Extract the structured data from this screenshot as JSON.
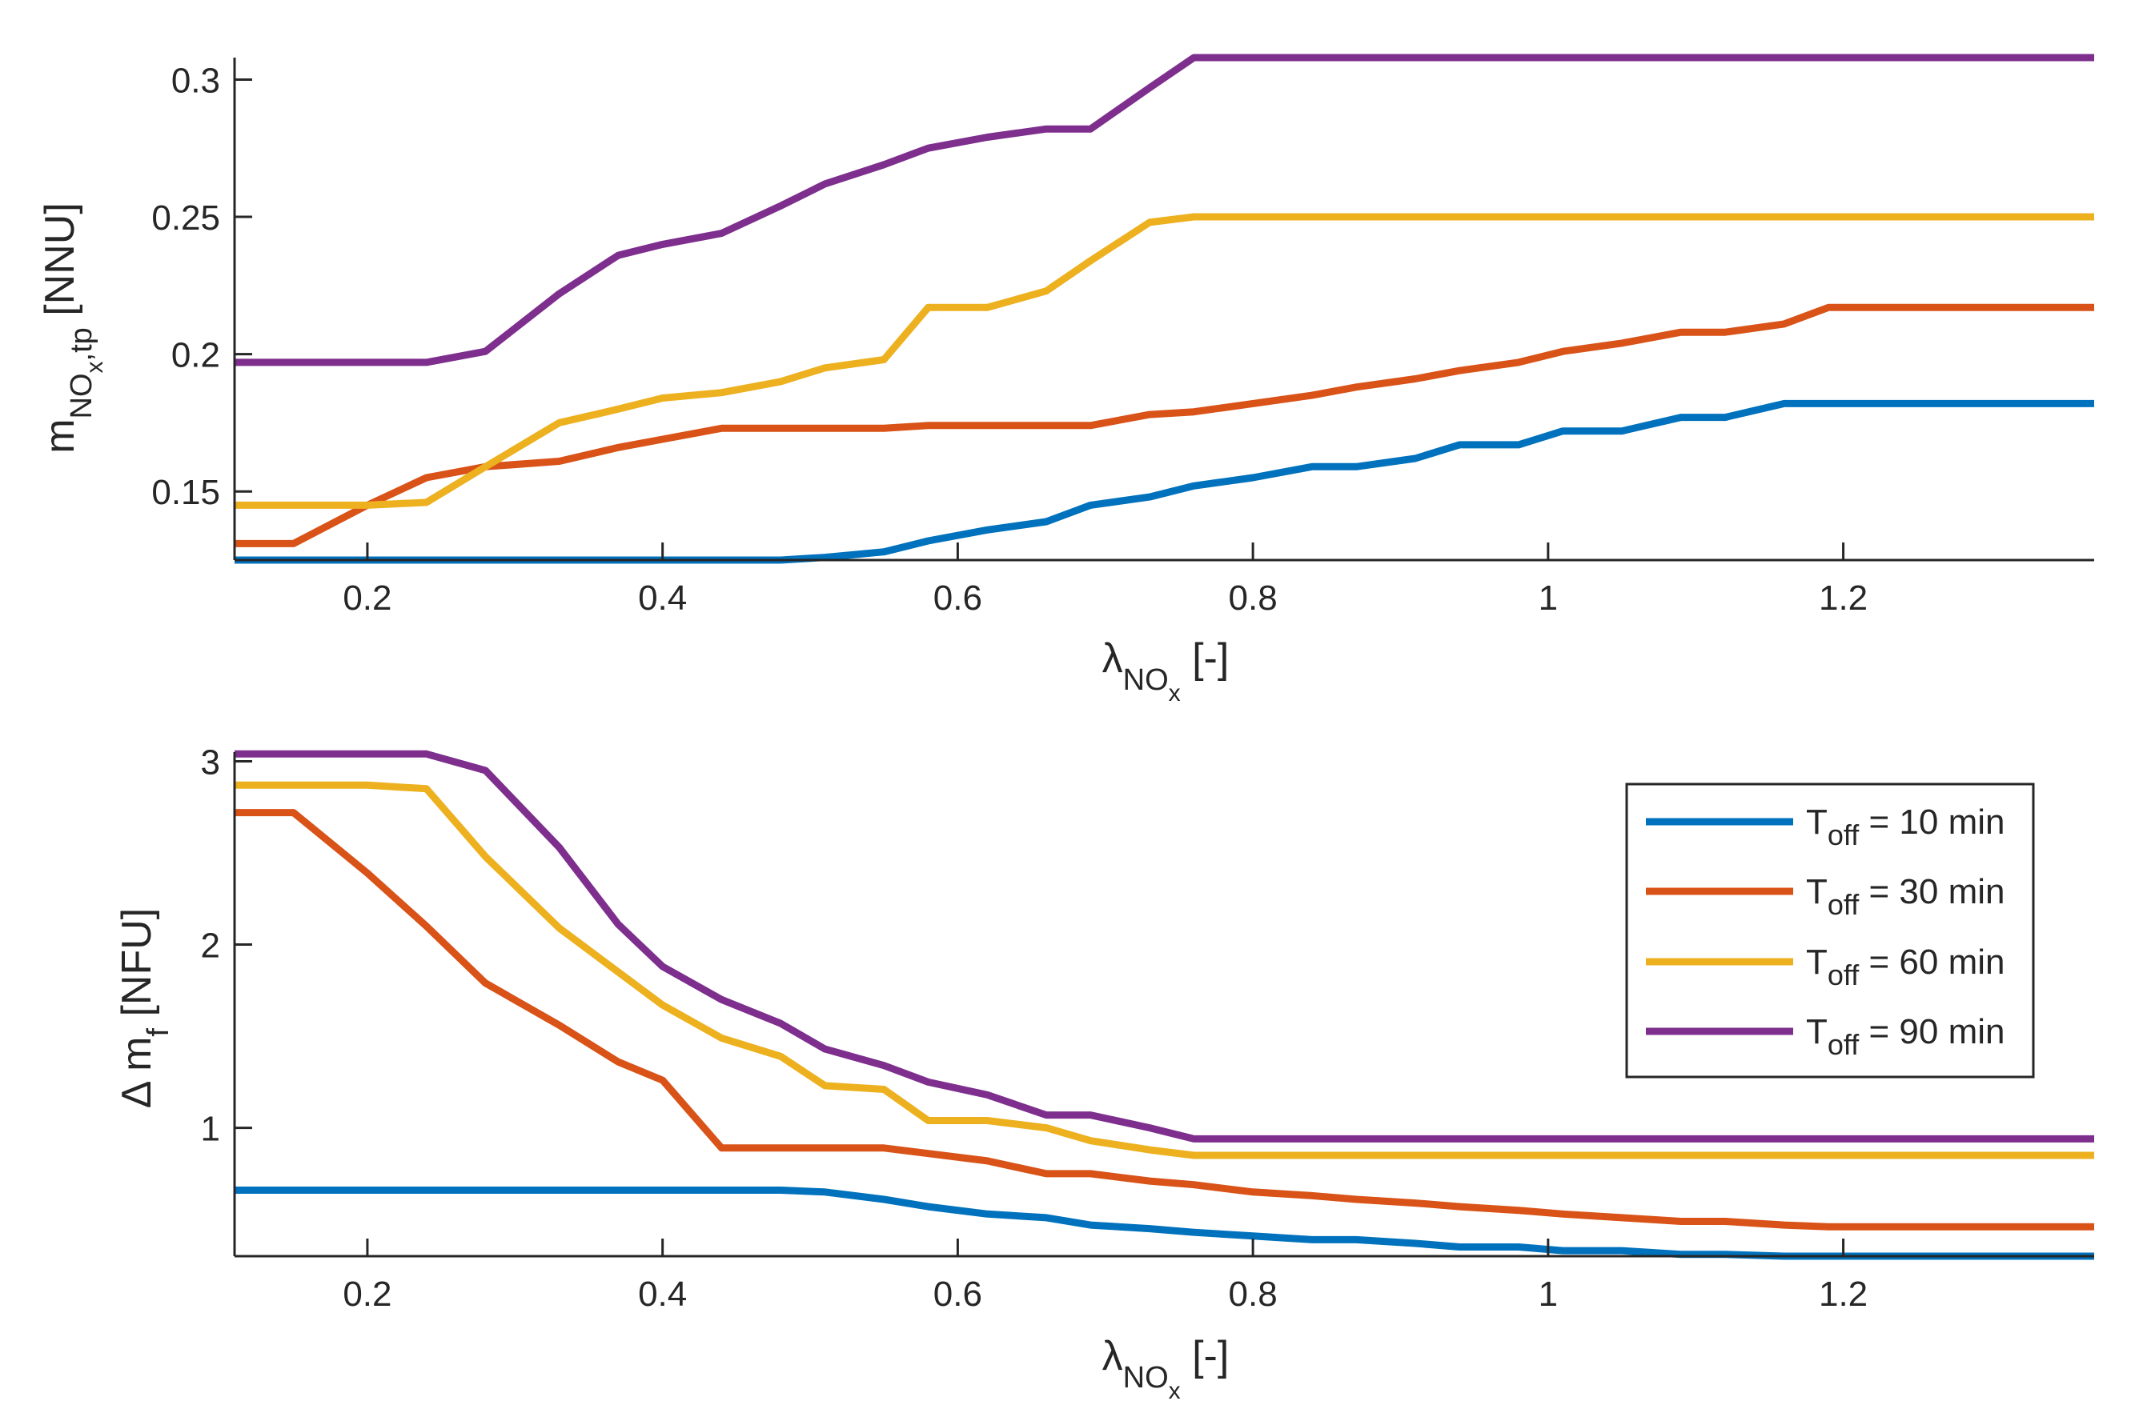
{
  "colors": {
    "series": [
      "#0072BD",
      "#D95319",
      "#EDB120",
      "#7E2F8E"
    ],
    "axis": "#262626",
    "background": "#ffffff"
  },
  "chart_data": [
    {
      "type": "line",
      "panel": "top",
      "ylabel": {
        "main": "m",
        "sub": "NO",
        "subsub": "x",
        "tail": ",tp",
        "unit": " [NNU]"
      },
      "xlabel": {
        "main": "λ",
        "sub": "NO",
        "subsub": "x",
        "unit": " [-]"
      },
      "xlim": [
        0.11,
        1.37
      ],
      "ylim": [
        0.125,
        0.308
      ],
      "xticks": [
        0.2,
        0.4,
        0.6,
        0.8,
        1,
        1.2
      ],
      "xtick_labels": [
        "0.2",
        "0.4",
        "0.6",
        "0.8",
        "1",
        "1.2"
      ],
      "yticks": [
        0.15,
        0.2,
        0.25,
        0.3
      ],
      "ytick_labels": [
        "0.15",
        "0.2",
        "0.25",
        "0.3"
      ],
      "x": [
        0.11,
        0.15,
        0.2,
        0.24,
        0.28,
        0.33,
        0.37,
        0.4,
        0.44,
        0.48,
        0.51,
        0.55,
        0.58,
        0.62,
        0.66,
        0.69,
        0.73,
        0.76,
        0.8,
        0.84,
        0.87,
        0.91,
        0.94,
        0.98,
        1.01,
        1.05,
        1.09,
        1.12,
        1.16,
        1.19,
        1.23,
        1.37
      ],
      "series": [
        {
          "name": "T_off = 10 min",
          "values": [
            0.125,
            0.125,
            0.125,
            0.125,
            0.125,
            0.125,
            0.125,
            0.125,
            0.125,
            0.125,
            0.126,
            0.128,
            0.132,
            0.136,
            0.139,
            0.145,
            0.148,
            0.152,
            0.155,
            0.159,
            0.159,
            0.162,
            0.167,
            0.167,
            0.172,
            0.172,
            0.177,
            0.177,
            0.182,
            0.182,
            0.182,
            0.182
          ]
        },
        {
          "name": "T_off = 30 min",
          "values": [
            0.131,
            0.131,
            0.145,
            0.155,
            0.159,
            0.161,
            0.166,
            0.169,
            0.173,
            0.173,
            0.173,
            0.173,
            0.174,
            0.174,
            0.174,
            0.174,
            0.178,
            0.179,
            0.182,
            0.185,
            0.188,
            0.191,
            0.194,
            0.197,
            0.201,
            0.204,
            0.208,
            0.208,
            0.211,
            0.217,
            0.217,
            0.217
          ]
        },
        {
          "name": "T_off = 60 min",
          "values": [
            0.145,
            0.145,
            0.145,
            0.146,
            0.159,
            0.175,
            0.18,
            0.184,
            0.186,
            0.19,
            0.195,
            0.198,
            0.217,
            0.217,
            0.223,
            0.234,
            0.248,
            0.25,
            0.25,
            0.25,
            0.25,
            0.25,
            0.25,
            0.25,
            0.25,
            0.25,
            0.25,
            0.25,
            0.25,
            0.25,
            0.25,
            0.25
          ]
        },
        {
          "name": "T_off = 90 min",
          "values": [
            0.197,
            0.197,
            0.197,
            0.197,
            0.201,
            0.222,
            0.236,
            0.24,
            0.244,
            0.254,
            0.262,
            0.269,
            0.275,
            0.279,
            0.282,
            0.282,
            0.297,
            0.308,
            0.308,
            0.308,
            0.308,
            0.308,
            0.308,
            0.308,
            0.308,
            0.308,
            0.308,
            0.308,
            0.308,
            0.308,
            0.308,
            0.308
          ]
        }
      ]
    },
    {
      "type": "line",
      "panel": "bottom",
      "ylabel": {
        "main": "Δ m",
        "sub": "f",
        "unit": " [NFU]"
      },
      "xlabel": {
        "main": "λ",
        "sub": "NO",
        "subsub": "x",
        "unit": " [-]"
      },
      "xlim": [
        0.11,
        1.37
      ],
      "ylim": [
        0.3,
        3.05
      ],
      "xticks": [
        0.2,
        0.4,
        0.6,
        0.8,
        1,
        1.2
      ],
      "xtick_labels": [
        "0.2",
        "0.4",
        "0.6",
        "0.8",
        "1",
        "1.2"
      ],
      "yticks": [
        1,
        2,
        3
      ],
      "ytick_labels": [
        "1",
        "2",
        "3"
      ],
      "x": [
        0.11,
        0.15,
        0.2,
        0.24,
        0.28,
        0.33,
        0.37,
        0.4,
        0.44,
        0.48,
        0.51,
        0.55,
        0.58,
        0.62,
        0.66,
        0.69,
        0.73,
        0.76,
        0.8,
        0.84,
        0.87,
        0.91,
        0.94,
        0.98,
        1.01,
        1.05,
        1.09,
        1.12,
        1.16,
        1.19,
        1.23,
        1.37
      ],
      "series": [
        {
          "name": "T_off = 10 min",
          "values": [
            0.66,
            0.66,
            0.66,
            0.66,
            0.66,
            0.66,
            0.66,
            0.66,
            0.66,
            0.66,
            0.65,
            0.61,
            0.57,
            0.53,
            0.51,
            0.47,
            0.45,
            0.43,
            0.41,
            0.39,
            0.39,
            0.37,
            0.35,
            0.35,
            0.33,
            0.33,
            0.31,
            0.31,
            0.3,
            0.3,
            0.3,
            0.3
          ]
        },
        {
          "name": "T_off = 30 min",
          "values": [
            2.72,
            2.72,
            2.39,
            2.1,
            1.79,
            1.56,
            1.36,
            1.26,
            0.89,
            0.89,
            0.89,
            0.89,
            0.86,
            0.82,
            0.75,
            0.75,
            0.71,
            0.69,
            0.65,
            0.63,
            0.61,
            0.59,
            0.57,
            0.55,
            0.53,
            0.51,
            0.49,
            0.49,
            0.47,
            0.46,
            0.46,
            0.46
          ]
        },
        {
          "name": "T_off = 60 min",
          "values": [
            2.87,
            2.87,
            2.87,
            2.85,
            2.48,
            2.09,
            1.85,
            1.67,
            1.49,
            1.39,
            1.23,
            1.21,
            1.04,
            1.04,
            1.0,
            0.93,
            0.88,
            0.85,
            0.85,
            0.85,
            0.85,
            0.85,
            0.85,
            0.85,
            0.85,
            0.85,
            0.85,
            0.85,
            0.85,
            0.85,
            0.85,
            0.85
          ]
        },
        {
          "name": "T_off = 90 min",
          "values": [
            3.04,
            3.04,
            3.04,
            3.04,
            2.95,
            2.53,
            2.11,
            1.88,
            1.7,
            1.57,
            1.43,
            1.34,
            1.25,
            1.18,
            1.07,
            1.07,
            1.0,
            0.94,
            0.94,
            0.94,
            0.94,
            0.94,
            0.94,
            0.94,
            0.94,
            0.94,
            0.94,
            0.94,
            0.94,
            0.94,
            0.94,
            0.94
          ]
        }
      ],
      "legend": {
        "location": "top-right",
        "entries": [
          {
            "main": "T",
            "sub": "off",
            "rest": " = 10 min"
          },
          {
            "main": "T",
            "sub": "off",
            "rest": " = 30 min"
          },
          {
            "main": "T",
            "sub": "off",
            "rest": " = 60 min"
          },
          {
            "main": "T",
            "sub": "off",
            "rest": " = 90 min"
          }
        ]
      }
    }
  ]
}
